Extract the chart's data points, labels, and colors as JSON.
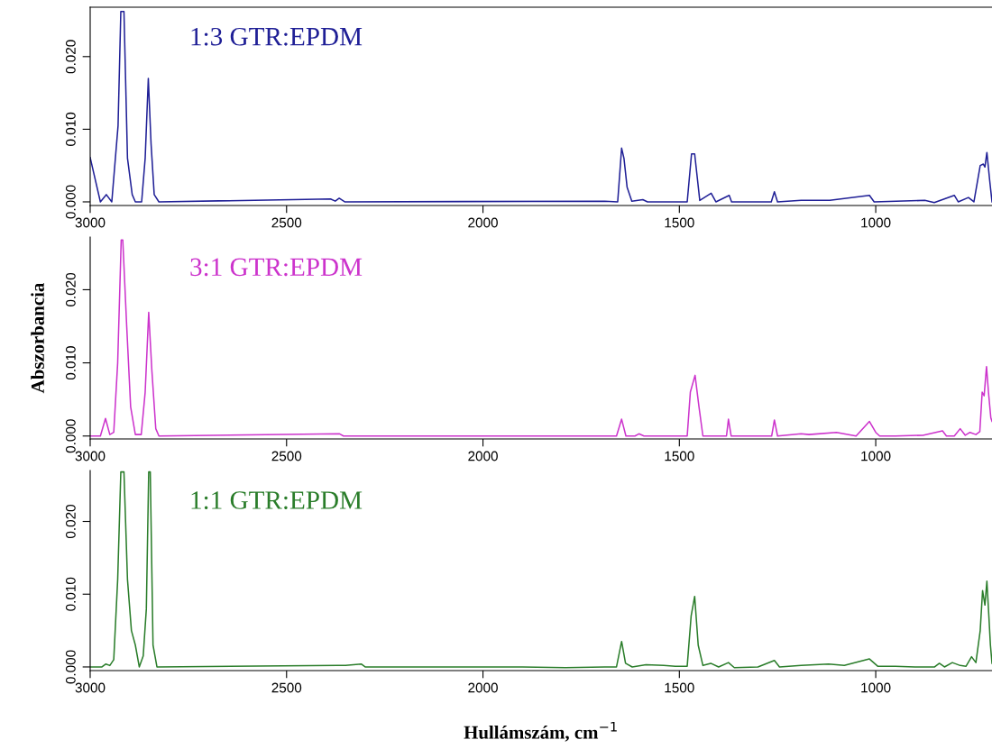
{
  "chart_data": [
    {
      "type": "line",
      "x": [
        3000,
        2974,
        2959,
        2945,
        2929,
        2922,
        2914,
        2905,
        2893,
        2885,
        2869,
        2860,
        2852,
        2845,
        2837,
        2825,
        2388,
        2376,
        2366,
        2352,
        1690,
        1657,
        1647,
        1641,
        1633,
        1621,
        1593,
        1581,
        1480,
        1469,
        1461,
        1448,
        1419,
        1407,
        1373,
        1367,
        1266,
        1258,
        1250,
        1190,
        1117,
        1016,
        1004,
        875,
        851,
        800,
        790,
        764,
        750,
        734,
        726,
        722,
        717,
        710,
        704
      ],
      "series": [
        {
          "name": "1:3 GTR:EPDM",
          "color": "#1f1f96",
          "values": [
            0.0061,
            0,
            0.001,
            0,
            0.0105,
            0.0262,
            0.0262,
            0.006,
            0.001,
            0,
            0,
            0.006,
            0.017,
            0.008,
            0.001,
            0,
            0.0004,
            0.0001,
            0.0005,
            0,
            0.0001,
            0,
            0.0074,
            0.006,
            0.002,
            0.0001,
            0.0003,
            0,
            0,
            0.0066,
            0.0066,
            0.0002,
            0.0012,
            0,
            0.0009,
            0,
            0,
            0.0014,
            0,
            0.0002,
            0.0002,
            0.0009,
            0,
            0.0002,
            -0.0001,
            0.0009,
            0,
            0.0006,
            0,
            0.005,
            0.0052,
            0.0048,
            0.0068,
            0.003,
            0
          ]
        }
      ],
      "xlim": [
        3000,
        704
      ],
      "xticks": [
        3000,
        2500,
        2000,
        1500,
        1000
      ],
      "ylim": [
        -0.0005,
        0.0268
      ],
      "yticks": [
        {
          "value": 0,
          "label": "0.000"
        },
        {
          "value": 0.01,
          "label": "0.010"
        },
        {
          "value": 0.02,
          "label": "0.020"
        }
      ],
      "grid": false,
      "legend": false
    },
    {
      "type": "line",
      "x": [
        3000,
        2974,
        2961,
        2950,
        2940,
        2930,
        2921,
        2917,
        2907,
        2897,
        2885,
        2870,
        2860,
        2851,
        2843,
        2833,
        2825,
        2365,
        2355,
        1660,
        1647,
        1636,
        1613,
        1603,
        1590,
        1480,
        1472,
        1460,
        1450,
        1440,
        1380,
        1375,
        1368,
        1265,
        1258,
        1250,
        1190,
        1170,
        1100,
        1050,
        1016,
        1000,
        990,
        950,
        880,
        830,
        820,
        800,
        785,
        772,
        760,
        745,
        735,
        729,
        724,
        718,
        713,
        707,
        704
      ],
      "series": [
        {
          "name": "3:1 GTR:EPDM",
          "color": "#cc33cc",
          "values": [
            0,
            0,
            0.0024,
            0.0002,
            0.0005,
            0.01,
            0.0268,
            0.0268,
            0.015,
            0.004,
            0.0002,
            0.0002,
            0.006,
            0.0169,
            0.009,
            0.001,
            0,
            0.0003,
            0,
            0,
            0.0023,
            0,
            0,
            0.0003,
            0,
            0,
            0.006,
            0.0083,
            0.004,
            0,
            0,
            0.0023,
            0,
            0,
            0.0022,
            0,
            0.0003,
            0.0002,
            0.0005,
            0,
            0.002,
            0.0005,
            0,
            0,
            0.0001,
            0.0007,
            0,
            0,
            0.001,
            0.0001,
            0.0005,
            0.0002,
            0.0006,
            0.006,
            0.0055,
            0.0095,
            0.006,
            0.0025,
            0.002
          ]
        }
      ],
      "ylabel": "Abszorbancia",
      "xlim": [
        3000,
        704
      ],
      "xticks": [
        3000,
        2500,
        2000,
        1500,
        1000
      ],
      "ylim": [
        -0.0004,
        0.0272
      ],
      "yticks": [
        {
          "value": 0,
          "label": "0.000"
        },
        {
          "value": 0.01,
          "label": "0.010"
        },
        {
          "value": 0.02,
          "label": "0.020"
        }
      ],
      "grid": false,
      "legend": false
    },
    {
      "type": "line",
      "x": [
        3000,
        2970,
        2960,
        2950,
        2940,
        2930,
        2922,
        2914,
        2905,
        2895,
        2885,
        2875,
        2865,
        2857,
        2851,
        2847,
        2840,
        2830,
        2370,
        2350,
        2310,
        2300,
        1900,
        1790,
        1690,
        1660,
        1647,
        1637,
        1620,
        1585,
        1540,
        1510,
        1480,
        1470,
        1461,
        1452,
        1440,
        1420,
        1400,
        1375,
        1360,
        1300,
        1258,
        1245,
        1190,
        1120,
        1080,
        1016,
        995,
        950,
        900,
        850,
        838,
        825,
        805,
        785,
        770,
        756,
        745,
        734,
        728,
        722,
        717,
        712,
        708,
        704
      ],
      "series": [
        {
          "name": "1:1 GTR:EPDM",
          "color": "#2a7d2a",
          "values": [
            0,
            0,
            0.0004,
            0.0002,
            0.001,
            0.012,
            0.0268,
            0.0268,
            0.012,
            0.005,
            0.003,
            0,
            0.0015,
            0.008,
            0.0268,
            0.0268,
            0.003,
            0,
            0.0002,
            0.0002,
            0.0004,
            0,
            0,
            -0.0001,
            0,
            0,
            0.0035,
            0.0005,
            0,
            0.0003,
            0.0002,
            0.0001,
            0.0001,
            0.007,
            0.0097,
            0.003,
            0.0002,
            0.0005,
            0,
            0.0006,
            -0.0001,
            0,
            0.0009,
            0,
            0.0002,
            0.0004,
            0.0002,
            0.0011,
            0.0001,
            0.0001,
            0,
            0,
            0.0005,
            0,
            0.0006,
            0.0002,
            0.0001,
            0.0014,
            0.0006,
            0.005,
            0.0105,
            0.0085,
            0.0118,
            0.007,
            0.003,
            0.0005
          ]
        }
      ],
      "xlabel": "Hullámszám, cm$^{−1}$",
      "xlim": [
        3000,
        704
      ],
      "xticks": [
        3000,
        2500,
        2000,
        1500,
        1000
      ],
      "ylim": [
        -0.0005,
        0.027
      ],
      "yticks": [
        {
          "value": 0,
          "label": "0.000"
        },
        {
          "value": 0.01,
          "label": "0.010"
        },
        {
          "value": 0.02,
          "label": "0.020"
        }
      ],
      "grid": false,
      "legend": false
    }
  ]
}
